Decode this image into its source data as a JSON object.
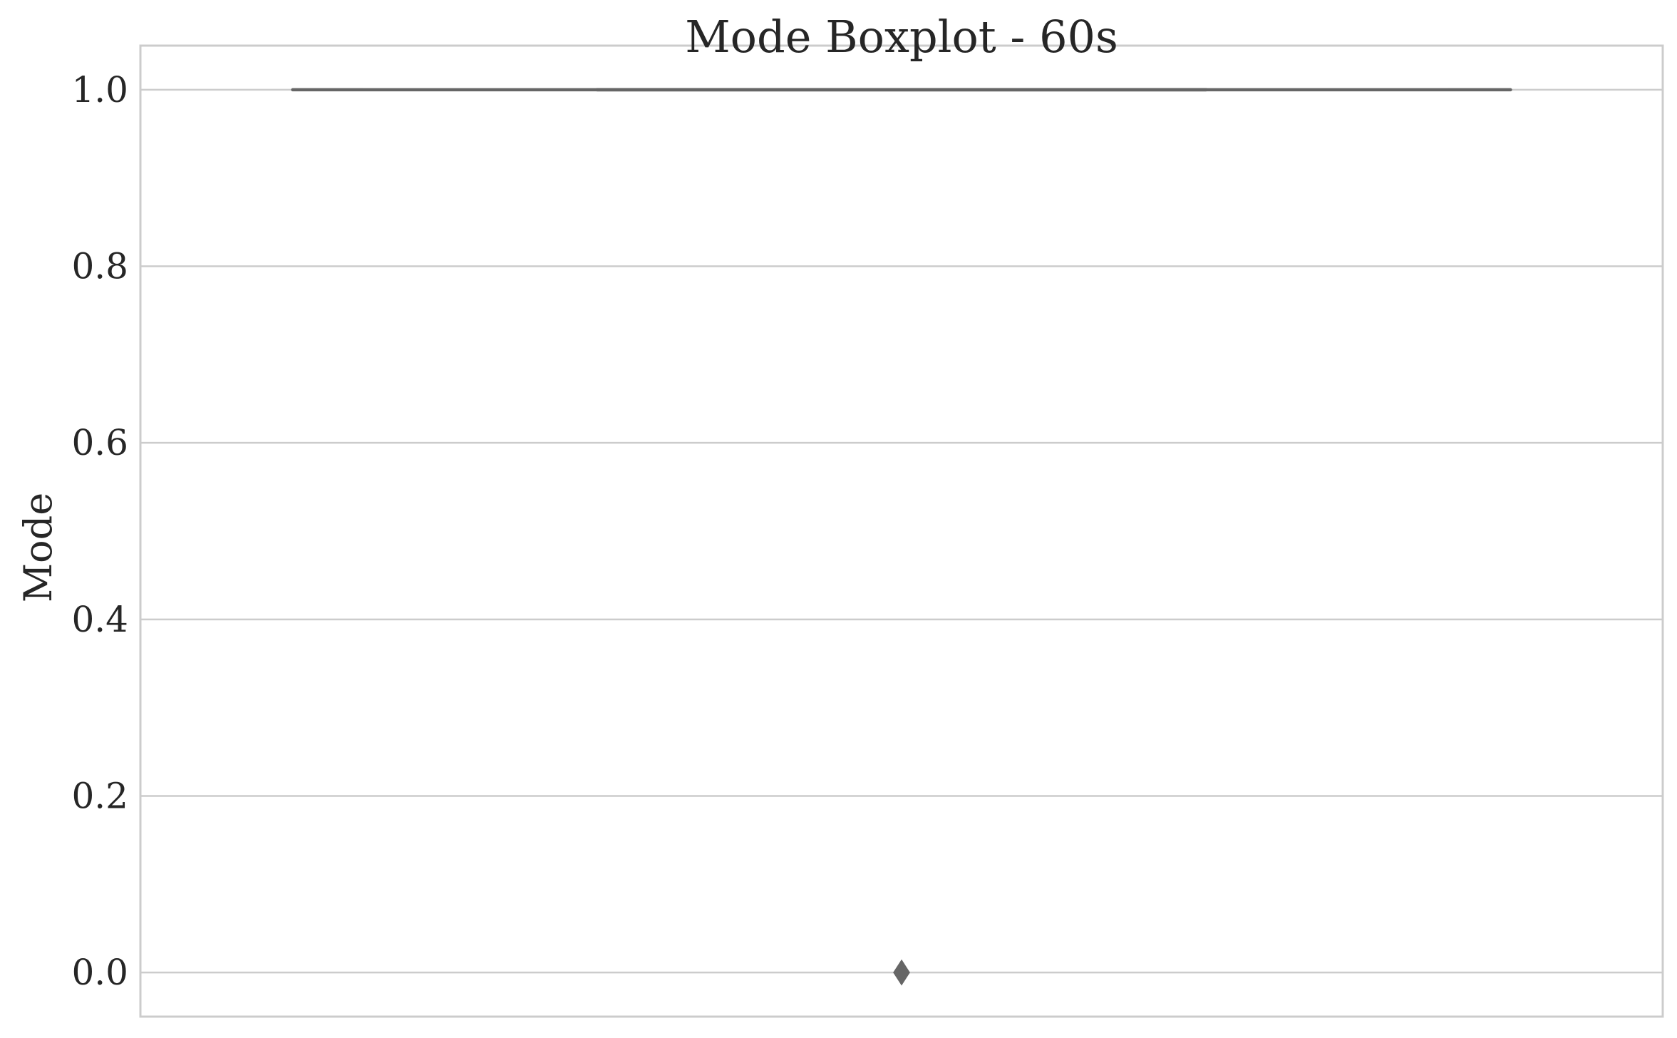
{
  "chart_data": {
    "type": "box",
    "title": "Mode Boxplot - 60s",
    "xlabel": "",
    "ylabel": "Mode",
    "ylim": [
      -0.05,
      1.05
    ],
    "yticks": [
      0.0,
      0.2,
      0.4,
      0.6,
      0.8,
      1.0
    ],
    "ytick_labels": [
      "0.0",
      "0.2",
      "0.4",
      "0.6",
      "0.8",
      "1.0"
    ],
    "grid": true,
    "series": [
      {
        "q1": 1.0,
        "median": 1.0,
        "q3": 1.0,
        "whisker_low": 1.0,
        "whisker_high": 1.0,
        "outliers": [
          0.0
        ]
      }
    ],
    "colors": {
      "grid": "#cccccc",
      "spine": "#cccccc",
      "box_line": "#666666",
      "text": "#262626",
      "background": "#ffffff"
    }
  }
}
